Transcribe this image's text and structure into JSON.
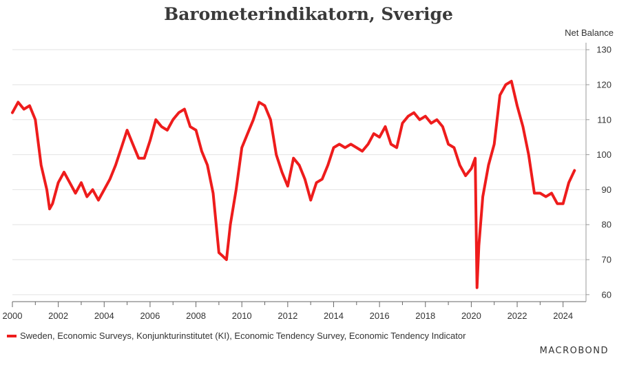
{
  "chart_data": {
    "type": "line",
    "title": "Barometerindikatorn, Sverige",
    "ylabel": "Net Balance",
    "ylim": [
      58,
      132
    ],
    "xlim": [
      2000.0,
      2025.0
    ],
    "y_ticks": [
      "60",
      "70",
      "80",
      "90",
      "100",
      "110",
      "120",
      "130"
    ],
    "x_ticks": [
      "2000",
      "2002",
      "2004",
      "2006",
      "2008",
      "2010",
      "2012",
      "2014",
      "2016",
      "2018",
      "2020",
      "2022",
      "2024"
    ],
    "grid": true,
    "y_axis_side": "right",
    "legend_position": "bottom-left",
    "line_color": "#ee1c1c",
    "series": [
      {
        "name": "Sweden, Economic Surveys, Konjunkturinstitutet (KI), Economic Tendency Survey, Economic Tendency Indicator",
        "x": [
          2000.0,
          2000.25,
          2000.5,
          2000.75,
          2001.0,
          2001.25,
          2001.5,
          2001.62,
          2001.75,
          2002.0,
          2002.25,
          2002.5,
          2002.75,
          2003.0,
          2003.25,
          2003.5,
          2003.75,
          2004.0,
          2004.25,
          2004.5,
          2004.75,
          2005.0,
          2005.25,
          2005.5,
          2005.75,
          2006.0,
          2006.25,
          2006.5,
          2006.75,
          2007.0,
          2007.25,
          2007.5,
          2007.75,
          2008.0,
          2008.25,
          2008.5,
          2008.75,
          2009.0,
          2009.17,
          2009.33,
          2009.5,
          2009.75,
          2010.0,
          2010.25,
          2010.5,
          2010.75,
          2011.0,
          2011.25,
          2011.5,
          2011.75,
          2012.0,
          2012.25,
          2012.5,
          2012.75,
          2013.0,
          2013.25,
          2013.5,
          2013.75,
          2014.0,
          2014.25,
          2014.5,
          2014.75,
          2015.0,
          2015.25,
          2015.5,
          2015.75,
          2016.0,
          2016.25,
          2016.5,
          2016.75,
          2017.0,
          2017.25,
          2017.5,
          2017.75,
          2018.0,
          2018.25,
          2018.5,
          2018.75,
          2019.0,
          2019.25,
          2019.5,
          2019.75,
          2020.0,
          2020.17,
          2020.25,
          2020.33,
          2020.5,
          2020.75,
          2021.0,
          2021.25,
          2021.5,
          2021.75,
          2022.0,
          2022.25,
          2022.5,
          2022.75,
          2023.0,
          2023.25,
          2023.5,
          2023.75,
          2024.0,
          2024.25,
          2024.5
        ],
        "y": [
          112,
          115,
          113,
          114,
          110,
          97,
          90,
          84.5,
          86,
          92,
          95,
          92,
          89,
          92,
          88,
          90,
          87,
          90,
          93,
          97,
          102,
          107,
          103,
          99,
          99,
          104,
          110,
          108,
          107,
          110,
          112,
          113,
          108,
          107,
          101,
          97,
          89,
          72,
          71,
          70,
          80,
          90,
          102,
          106,
          110,
          115,
          114,
          110,
          100,
          95,
          91,
          99,
          97,
          93,
          87,
          92,
          93,
          97,
          102,
          103,
          102,
          103,
          102,
          101,
          103,
          106,
          105,
          108,
          103,
          102,
          109,
          111,
          112,
          110,
          111,
          109,
          110,
          108,
          103,
          102,
          97,
          94,
          96,
          99,
          62,
          74,
          88,
          97,
          103,
          117,
          120,
          121,
          114,
          108,
          100,
          89,
          89,
          88,
          89,
          86,
          86,
          92,
          95.5
        ]
      }
    ]
  },
  "branding": {
    "logo_text": "MACROBOND"
  }
}
